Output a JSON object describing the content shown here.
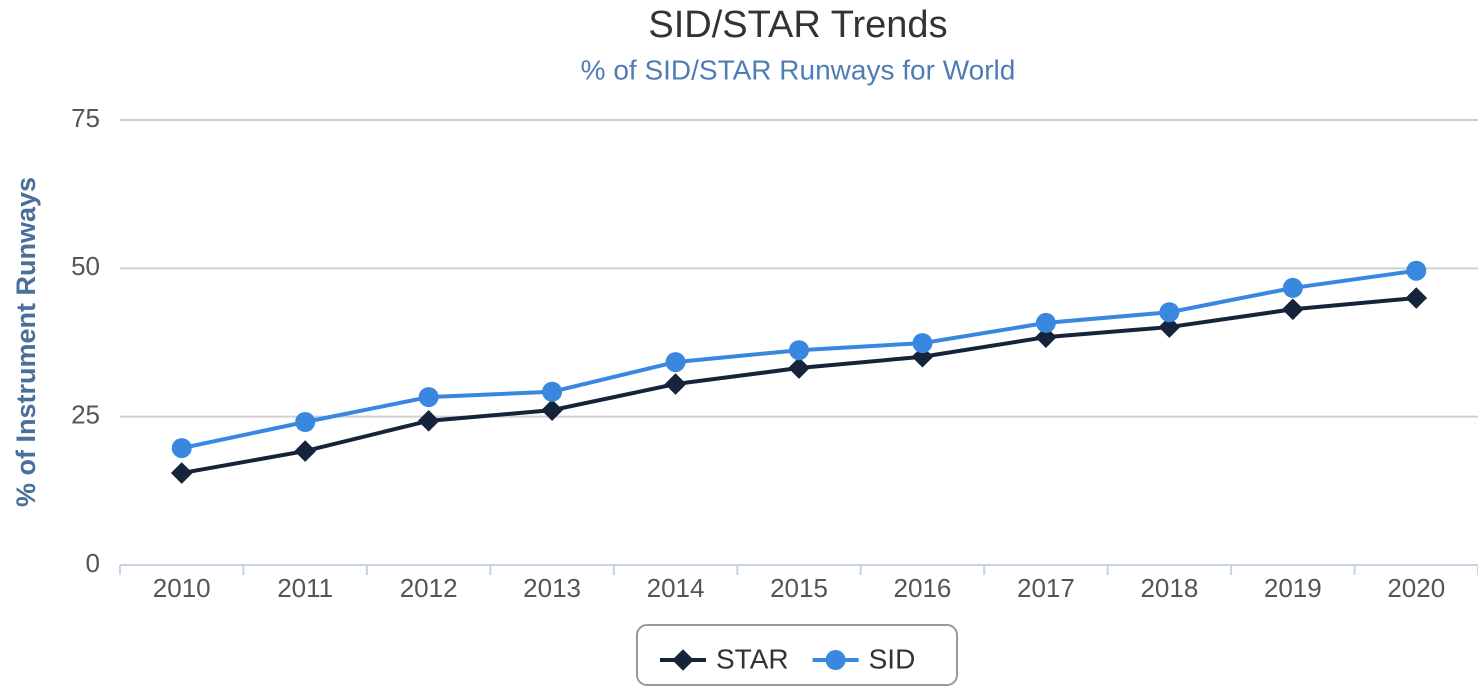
{
  "chart_data": {
    "type": "line",
    "title": "SID/STAR Trends",
    "subtitle": "% of SID/STAR Runways for World",
    "y_label": "% of Instrument Runways",
    "categories": [
      "2010",
      "2011",
      "2012",
      "2013",
      "2014",
      "2015",
      "2016",
      "2017",
      "2018",
      "2019",
      "2020"
    ],
    "series": [
      {
        "name": "STAR",
        "color": "#15243a",
        "marker": "diamond",
        "values": [
          15.5,
          19.2,
          24.3,
          26.1,
          30.5,
          33.2,
          35.1,
          38.4,
          40.1,
          43.1,
          45.0
        ]
      },
      {
        "name": "SID",
        "color": "#3a87e0",
        "marker": "circle",
        "values": [
          19.7,
          24.1,
          28.3,
          29.2,
          34.2,
          36.2,
          37.4,
          40.8,
          42.6,
          46.7,
          49.6
        ]
      }
    ],
    "ylim": [
      0,
      75
    ],
    "yticks": [
      0,
      25,
      50,
      75
    ],
    "grid": true,
    "legend": "bottom"
  }
}
